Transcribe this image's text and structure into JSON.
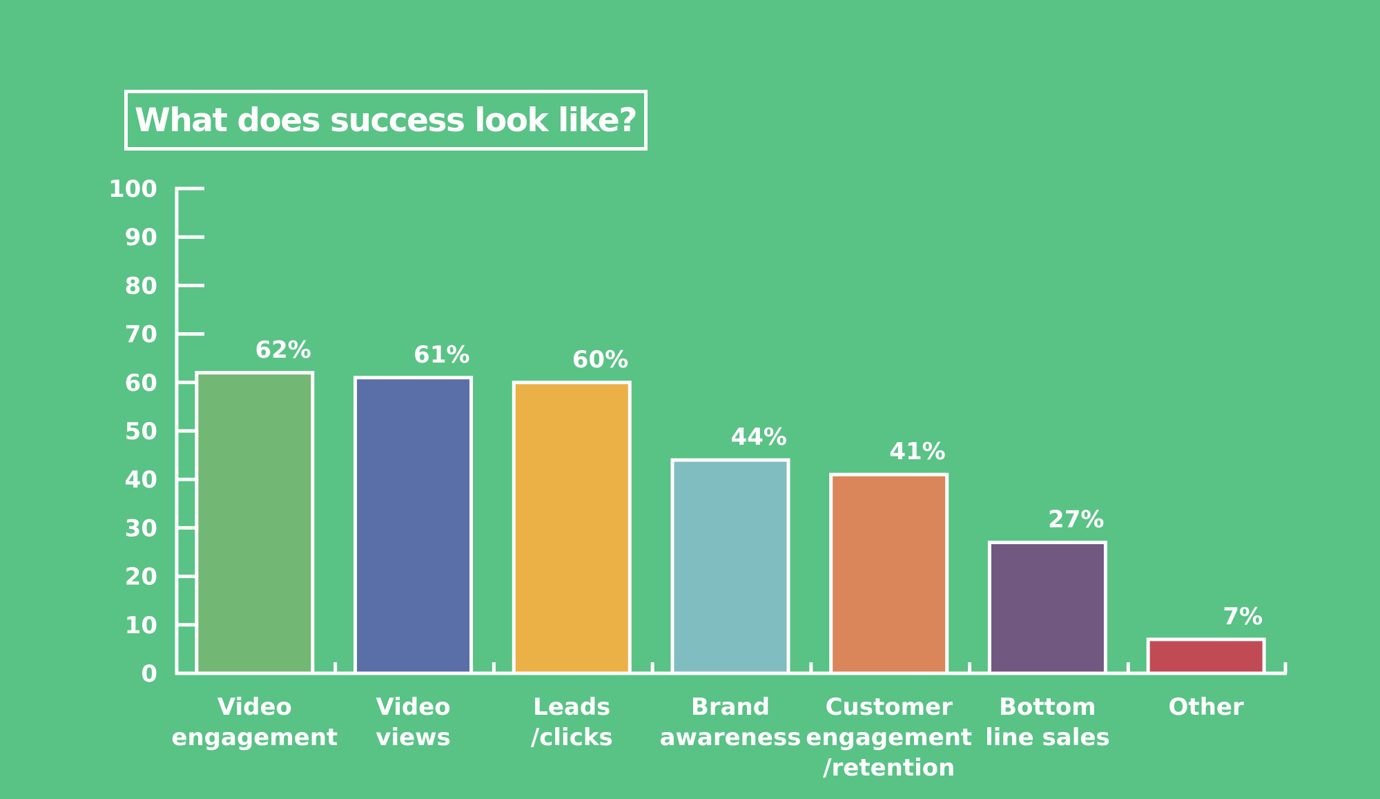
{
  "chart_data": {
    "type": "bar",
    "title": "What does success look like?",
    "xlabel": "",
    "ylabel": "",
    "ylim": [
      0,
      100
    ],
    "yticks": [
      "0",
      "10",
      "20",
      "30",
      "40",
      "50",
      "60",
      "70",
      "80",
      "90",
      "100"
    ],
    "categories": [
      [
        "Video",
        "engagement"
      ],
      [
        "Video",
        "views"
      ],
      [
        "Leads",
        "/clicks"
      ],
      [
        "Brand",
        "awareness"
      ],
      [
        "Customer",
        "engagement",
        "/retention"
      ],
      [
        "Bottom",
        "line sales"
      ],
      [
        "Other"
      ]
    ],
    "values": [
      62,
      61,
      60,
      44,
      41,
      27,
      7
    ],
    "value_labels": [
      "62%",
      "61%",
      "60%",
      "44%",
      "41%",
      "27%",
      "7%"
    ],
    "bar_colors": [
      "#72b874",
      "#5a6fa8",
      "#ebb046",
      "#80bdc1",
      "#db855a",
      "#715880",
      "#c14b55"
    ],
    "grid": false,
    "legend": "none"
  }
}
